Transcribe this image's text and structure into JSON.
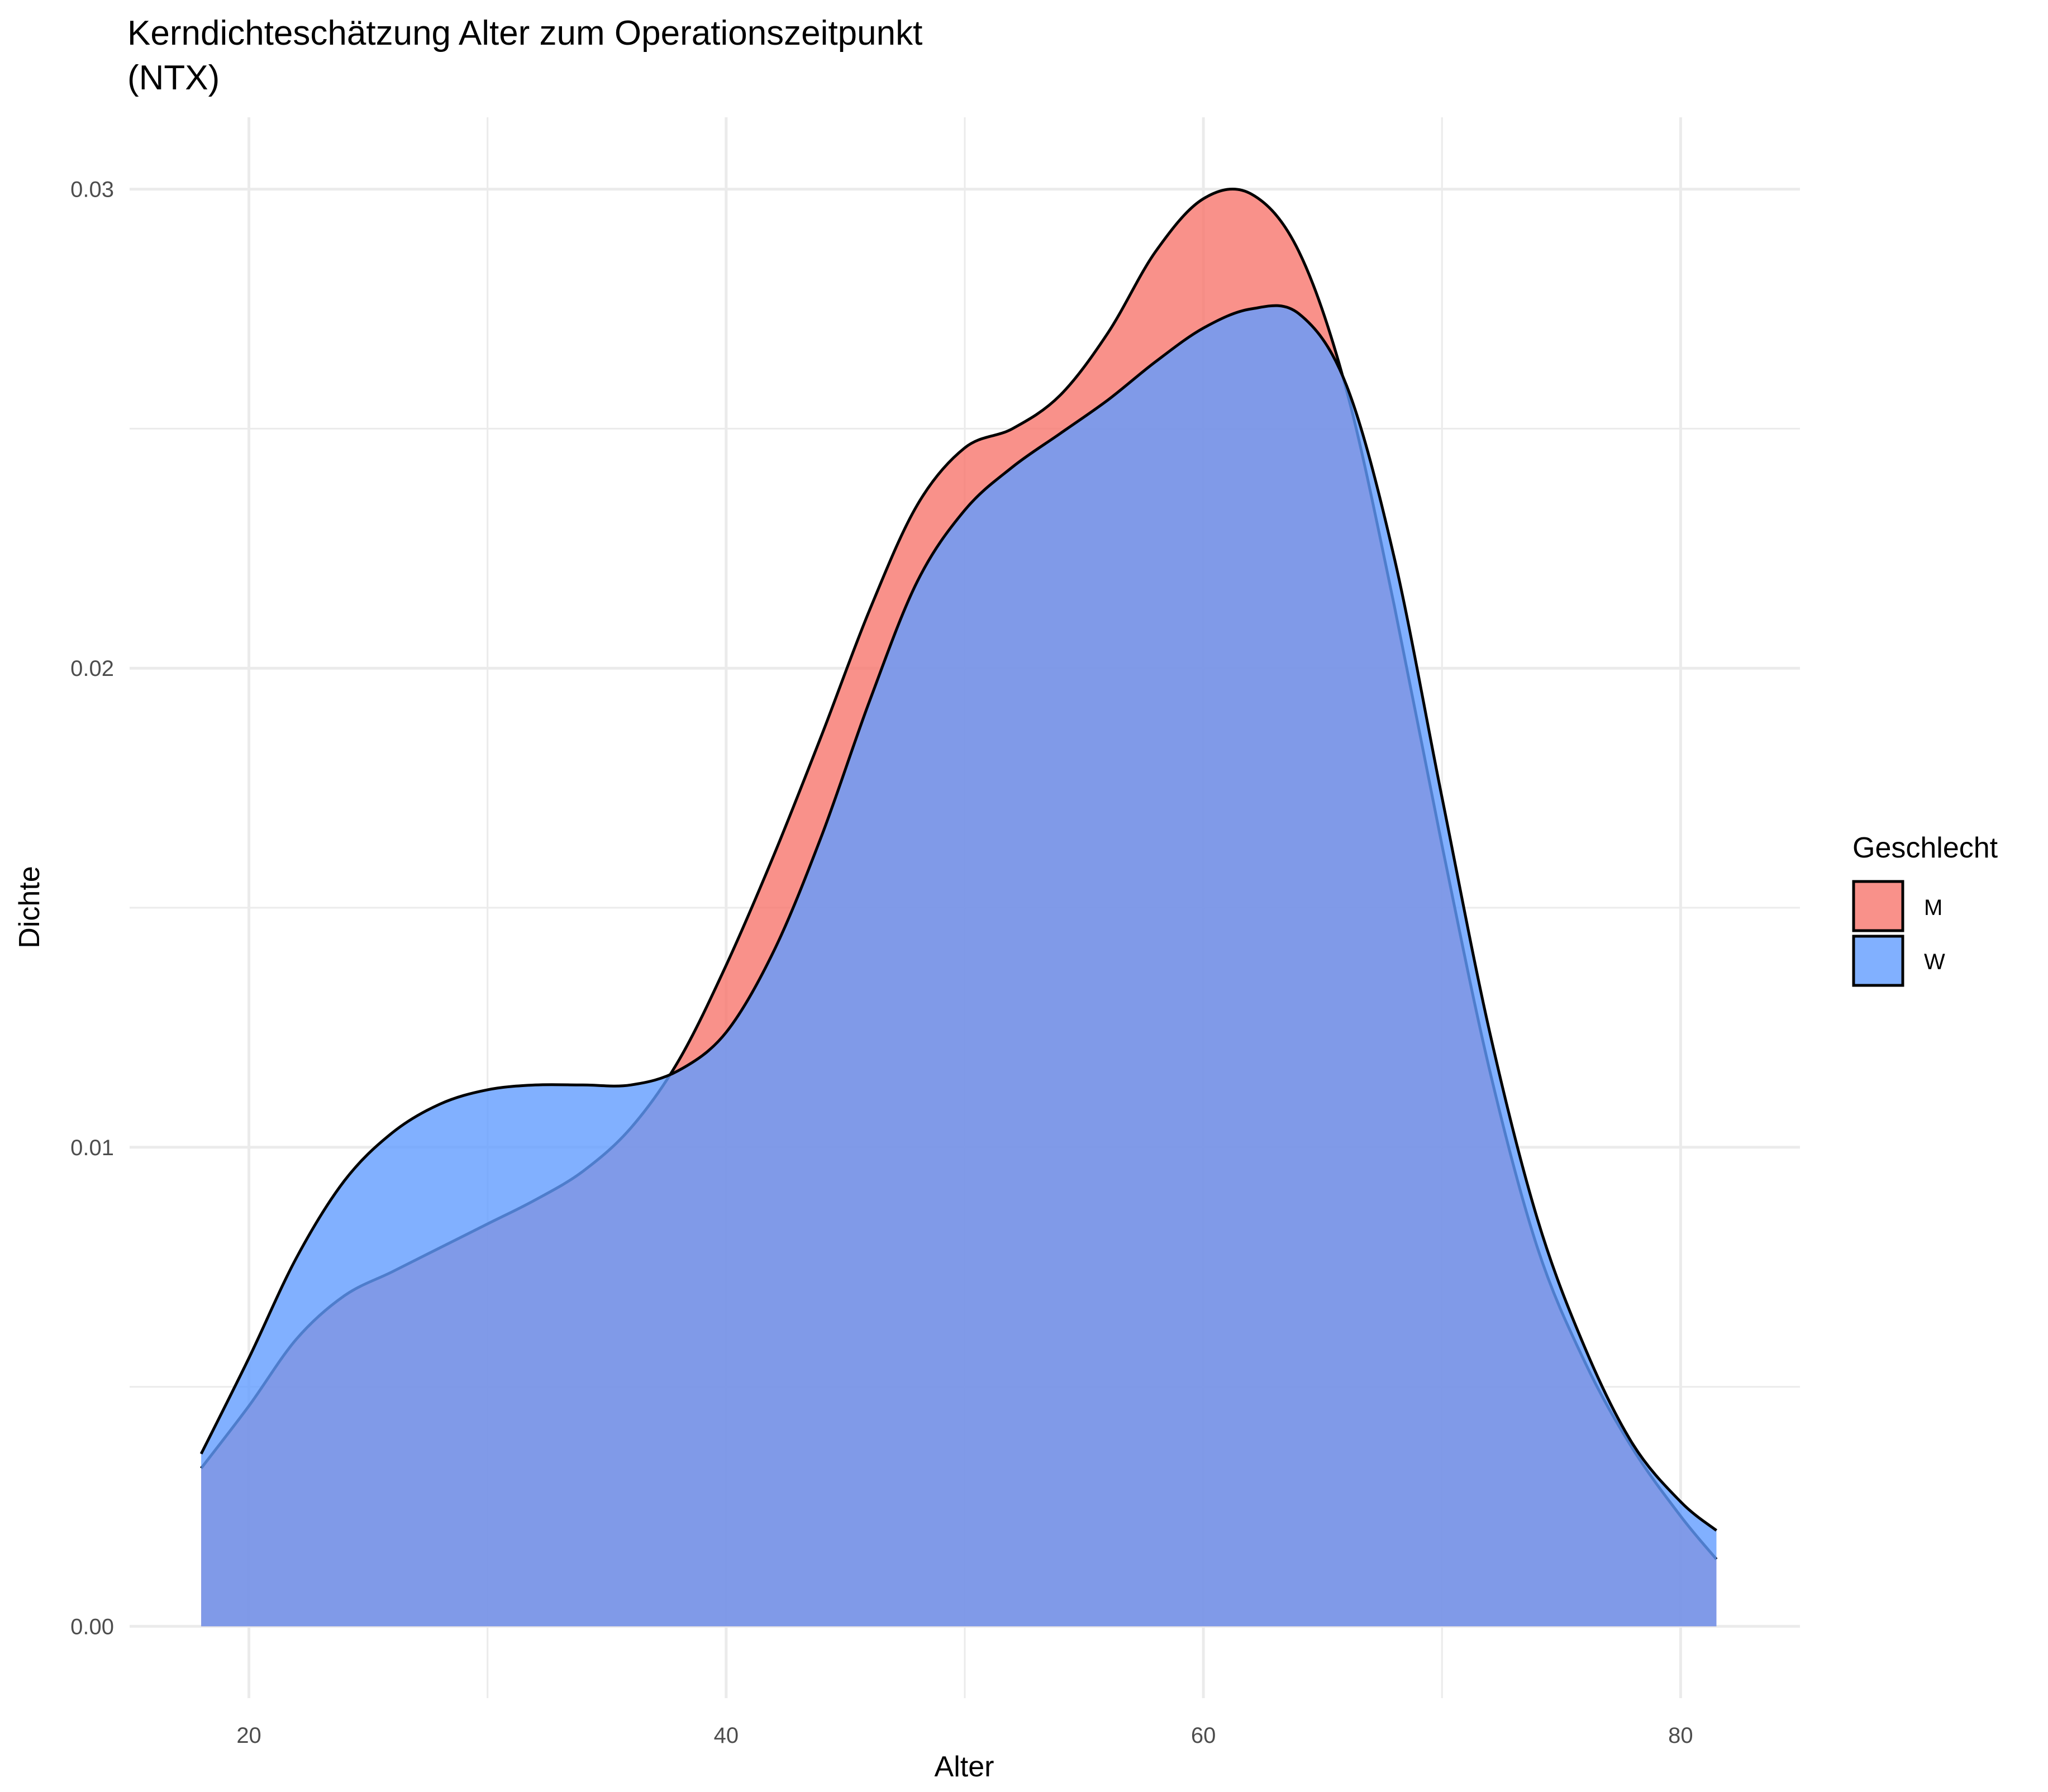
{
  "chart_data": {
    "type": "area",
    "title_line1": "Kerndichteschätzung Alter zum Operationszeitpunkt",
    "title_line2": "(NTX)",
    "xlabel": "Alter",
    "ylabel": "Dichte",
    "xlim": [
      15,
      85
    ],
    "ylim": [
      -0.0015,
      0.0315
    ],
    "x_ticks": [
      20,
      40,
      60,
      80
    ],
    "x_tick_labels": [
      "20",
      "40",
      "60",
      "80"
    ],
    "y_ticks": [
      0,
      0.01,
      0.02,
      0.03
    ],
    "y_tick_labels": [
      "0.00",
      "0.01",
      "0.02",
      "0.03"
    ],
    "grid": true,
    "legend": {
      "title": "Geschlecht",
      "position": "right"
    },
    "series": [
      {
        "name": "M",
        "color": "#F8766D",
        "x": [
          18,
          20,
          22,
          24,
          26,
          28,
          30,
          32,
          34,
          36,
          38,
          40,
          42,
          44,
          46,
          48,
          50,
          52,
          54,
          56,
          58,
          60,
          62,
          64,
          66,
          68,
          70,
          72,
          74,
          76,
          78,
          80,
          81.5
        ],
        "values": [
          0.0033,
          0.0046,
          0.006,
          0.0069,
          0.0074,
          0.0079,
          0.0084,
          0.0089,
          0.0095,
          0.0104,
          0.0118,
          0.0138,
          0.0161,
          0.0186,
          0.0212,
          0.0234,
          0.0246,
          0.025,
          0.0257,
          0.027,
          0.0287,
          0.0298,
          0.0299,
          0.0287,
          0.0258,
          0.0213,
          0.0163,
          0.0116,
          0.0079,
          0.0055,
          0.0037,
          0.0023,
          0.0014
        ]
      },
      {
        "name": "W",
        "color": "#619CFF",
        "x": [
          18,
          20,
          22,
          24,
          26,
          28,
          30,
          32,
          34,
          36,
          38,
          40,
          42,
          44,
          46,
          48,
          50,
          52,
          54,
          56,
          58,
          60,
          62,
          64,
          66,
          68,
          70,
          72,
          74,
          76,
          78,
          80,
          81.5
        ],
        "values": [
          0.0036,
          0.0056,
          0.0077,
          0.0093,
          0.0103,
          0.0109,
          0.0112,
          0.0113,
          0.0113,
          0.0113,
          0.0116,
          0.0124,
          0.0141,
          0.0165,
          0.0193,
          0.0218,
          0.0233,
          0.0242,
          0.0249,
          0.0256,
          0.0264,
          0.0271,
          0.0275,
          0.0274,
          0.0259,
          0.0223,
          0.0173,
          0.0124,
          0.0085,
          0.0058,
          0.0038,
          0.0026,
          0.002
        ]
      }
    ]
  }
}
